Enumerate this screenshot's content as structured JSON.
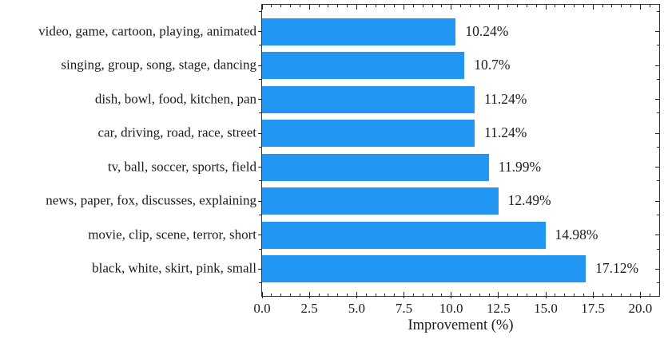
{
  "chart_data": {
    "type": "bar",
    "orientation": "horizontal",
    "title": "",
    "xlabel": "Improvement (%)",
    "ylabel": "",
    "categories": [
      "video, game, cartoon, playing, animated",
      "singing, group, song, stage, dancing",
      "dish, bowl, food, kitchen, pan",
      "car, driving, road, race, street",
      "tv, ball, soccer, sports, field",
      "news, paper, fox, discusses, explaining",
      "movie, clip, scene, terror, short",
      "black, white, skirt, pink, small"
    ],
    "values": [
      10.24,
      10.7,
      11.24,
      11.24,
      11.99,
      12.49,
      14.98,
      17.12
    ],
    "bar_labels": [
      "10.24%",
      "10.7%",
      "11.24%",
      "11.24%",
      "11.99%",
      "12.49%",
      "14.98%",
      "17.12%"
    ],
    "xlim": [
      0,
      21
    ],
    "x_major_ticks": [
      0,
      2.5,
      5,
      7.5,
      10,
      12.5,
      15,
      17.5,
      20
    ],
    "x_tick_labels": [
      "0.0",
      "2.5",
      "5.0",
      "7.5",
      "10.0",
      "12.5",
      "15.0",
      "17.5",
      "20.0"
    ],
    "x_minor_step": 0.5,
    "grid": false,
    "legend": null,
    "bar_color": "#2196F3",
    "axis_color": "#222222",
    "text_color": "#1c1c1c"
  }
}
